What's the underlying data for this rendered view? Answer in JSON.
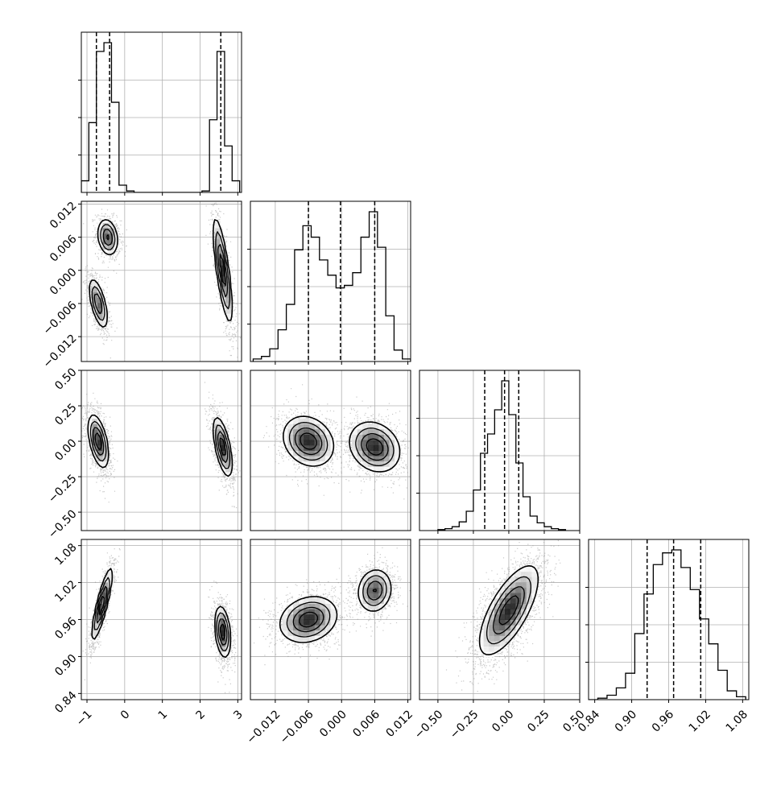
{
  "chart_data": {
    "type": "scatter",
    "subtype": "corner-plot",
    "grid": true,
    "histogram_style": "step",
    "marginal_quantiles": [
      0.16,
      0.5,
      0.84
    ],
    "variables": [
      {
        "index": 0,
        "range": [
          -1.15,
          3.1
        ],
        "ticks": [
          -1,
          0,
          1,
          2,
          3
        ],
        "tick_labels": [
          "−1",
          "0",
          "1",
          "2",
          "3"
        ],
        "quantile_lines": [
          -0.75,
          -0.4,
          2.55
        ],
        "histogram": {
          "edges": [
            -1.15,
            -0.95,
            -0.75,
            -0.55,
            -0.35,
            -0.15,
            0.05,
            0.25,
            2.05,
            2.25,
            2.45,
            2.65,
            2.85,
            3.05
          ],
          "counts": [
            0.08,
            0.48,
            0.97,
            1.03,
            0.62,
            0.05,
            0.01,
            0.0,
            0.01,
            0.5,
            0.97,
            0.32,
            0.08
          ]
        },
        "blobs": [
          {
            "cx": -0.45,
            "cy": 0.006,
            "sx": 0.13,
            "sy": 0.0016,
            "rho": -0.2,
            "w": 0.32
          },
          {
            "cx": -0.7,
            "cy": -0.006,
            "sx": 0.12,
            "sy": 0.0022,
            "rho": -0.6,
            "w": 0.3
          },
          {
            "cx": 2.6,
            "cy": 0.0,
            "sx": 0.12,
            "sy": 0.0045,
            "rho": -0.75,
            "w": 0.38
          }
        ]
      },
      {
        "index": 1,
        "range": [
          -0.0165,
          0.0125
        ],
        "ticks": [
          -0.012,
          -0.006,
          0.0,
          0.006,
          0.012
        ],
        "tick_labels": [
          "−0.012",
          "−0.006",
          "0.000",
          "0.006",
          "0.012"
        ],
        "quantile_lines": [
          -0.006,
          -0.0002,
          0.006
        ],
        "histogram": {
          "edges": [
            -0.016,
            -0.0145,
            -0.013,
            -0.0115,
            -0.01,
            -0.0085,
            -0.007,
            -0.0055,
            -0.004,
            -0.0025,
            -0.001,
            0.0005,
            0.002,
            0.0035,
            0.005,
            0.0065,
            0.008,
            0.0095,
            0.011,
            0.0125
          ],
          "counts": [
            0.02,
            0.04,
            0.1,
            0.25,
            0.45,
            0.88,
            1.07,
            0.98,
            0.8,
            0.68,
            0.58,
            0.6,
            0.7,
            0.98,
            1.18,
            0.9,
            0.36,
            0.09,
            0.02
          ]
        },
        "blobs": []
      },
      {
        "index": 2,
        "range": [
          -0.63,
          0.5
        ],
        "ticks": [
          -0.5,
          -0.25,
          0.0,
          0.25,
          0.5
        ],
        "tick_labels": [
          "−0.50",
          "−0.25",
          "0.00",
          "0.25",
          "0.50"
        ],
        "quantile_lines": [
          -0.17,
          -0.03,
          0.07
        ],
        "histogram": {
          "edges": [
            -0.5,
            -0.45,
            -0.4,
            -0.35,
            -0.3,
            -0.25,
            -0.2,
            -0.15,
            -0.1,
            -0.05,
            0.0,
            0.05,
            0.1,
            0.15,
            0.2,
            0.25,
            0.3,
            0.35,
            0.4
          ],
          "counts": [
            0.01,
            0.02,
            0.04,
            0.09,
            0.2,
            0.42,
            0.8,
            1.0,
            1.25,
            1.55,
            1.2,
            0.7,
            0.35,
            0.15,
            0.08,
            0.04,
            0.02,
            0.01
          ]
        },
        "blobs": [
          {
            "vx": 0,
            "cx": -0.7,
            "cy": 0.0,
            "sx": 0.13,
            "sy": 0.09,
            "rho": -0.5,
            "w": 0.5
          },
          {
            "vx": 0,
            "cx": 2.6,
            "cy": -0.04,
            "sx": 0.12,
            "sy": 0.1,
            "rho": -0.6,
            "w": 0.5
          },
          {
            "vx": 1,
            "cx": -0.006,
            "cy": 0.0,
            "sx": 0.0022,
            "sy": 0.085,
            "rho": -0.2,
            "w": 0.5
          },
          {
            "vx": 1,
            "cx": 0.006,
            "cy": -0.04,
            "sx": 0.0022,
            "sy": 0.085,
            "rho": -0.2,
            "w": 0.5
          }
        ]
      },
      {
        "index": 3,
        "range": [
          0.83,
          1.09
        ],
        "ticks": [
          0.84,
          0.9,
          0.96,
          1.02,
          1.08
        ],
        "tick_labels": [
          "0.84",
          "0.90",
          "0.96",
          "1.02",
          "1.08"
        ],
        "quantile_lines": [
          0.925,
          0.968,
          1.012
        ],
        "histogram": {
          "edges": [
            0.83,
            0.845,
            0.86,
            0.875,
            0.89,
            0.905,
            0.92,
            0.935,
            0.95,
            0.965,
            0.98,
            0.995,
            1.01,
            1.025,
            1.04,
            1.055,
            1.07,
            1.085
          ],
          "counts": [
            0.0,
            0.01,
            0.03,
            0.08,
            0.18,
            0.45,
            0.72,
            0.92,
            1.0,
            1.02,
            0.9,
            0.75,
            0.55,
            0.38,
            0.2,
            0.06,
            0.02
          ]
        },
        "blobs": [
          {
            "vx": 0,
            "cx": -0.6,
            "cy": 0.985,
            "sx": 0.13,
            "sy": 0.028,
            "rho": 0.85,
            "w": 0.5
          },
          {
            "vx": 0,
            "cx": 2.6,
            "cy": 0.94,
            "sx": 0.1,
            "sy": 0.02,
            "rho": -0.3,
            "w": 0.5
          },
          {
            "vx": 1,
            "cx": -0.006,
            "cy": 0.96,
            "sx": 0.0025,
            "sy": 0.018,
            "rho": 0.2,
            "w": 0.55
          },
          {
            "vx": 1,
            "cx": 0.006,
            "cy": 1.007,
            "sx": 0.0015,
            "sy": 0.017,
            "rho": 0.1,
            "w": 0.45
          },
          {
            "vx": 2,
            "cx": 0.0,
            "cy": 0.975,
            "sx": 0.1,
            "sy": 0.035,
            "rho": 0.7,
            "w": 1.0
          }
        ]
      }
    ],
    "density_color": "#000000",
    "scatter_color": "#888888"
  }
}
